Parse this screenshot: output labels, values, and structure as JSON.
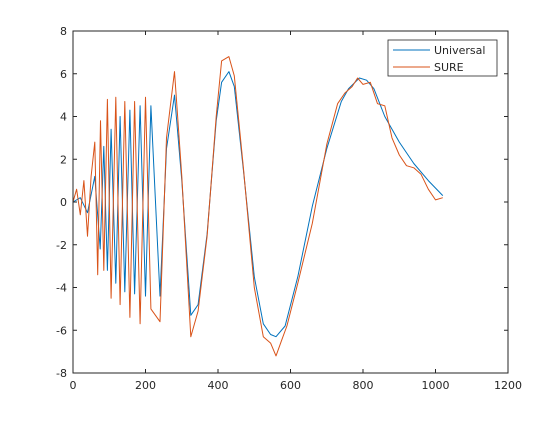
{
  "chart_data": {
    "type": "line",
    "title": "",
    "xlabel": "",
    "ylabel": "",
    "xlim": [
      0,
      1200
    ],
    "ylim": [
      -8,
      8
    ],
    "xticks": [
      0,
      200,
      400,
      600,
      800,
      1000,
      1200
    ],
    "yticks": [
      -8,
      -6,
      -4,
      -2,
      0,
      2,
      4,
      6,
      8
    ],
    "xtick_labels": [
      "0",
      "200",
      "400",
      "600",
      "800",
      "1000",
      "1200"
    ],
    "ytick_labels": [
      "-8",
      "-6",
      "-4",
      "-2",
      "0",
      "2",
      "4",
      "6",
      "8"
    ],
    "grid": false,
    "legend_position": "top-right",
    "series": [
      {
        "name": "Universal",
        "color": "#0072BD",
        "x": [
          0,
          20,
          40,
          60,
          75,
          85,
          95,
          105,
          118,
          130,
          143,
          157,
          170,
          185,
          200,
          215,
          240,
          258,
          280,
          300,
          325,
          345,
          370,
          395,
          410,
          430,
          445,
          470,
          500,
          525,
          545,
          560,
          585,
          620,
          660,
          700,
          740,
          760,
          790,
          810,
          830,
          860,
          900,
          940,
          980,
          1020
        ],
        "y": [
          0,
          0.2,
          -0.5,
          1.2,
          -2.2,
          2.6,
          -3.2,
          3.4,
          -3.8,
          4.0,
          -4.2,
          4.3,
          -4.3,
          4.5,
          -4.4,
          4.5,
          -4.4,
          2.5,
          5.0,
          1.0,
          -5.3,
          -4.8,
          -1.5,
          3.8,
          5.6,
          6.1,
          5.4,
          1.5,
          -3.5,
          -5.7,
          -6.2,
          -6.3,
          -5.8,
          -3.5,
          -0.2,
          2.5,
          4.7,
          5.3,
          5.8,
          5.7,
          5.3,
          4.0,
          2.8,
          1.8,
          1.0,
          0.3
        ]
      },
      {
        "name": "SURE",
        "color": "#D95319",
        "x": [
          0,
          10,
          20,
          30,
          40,
          50,
          60,
          68,
          76,
          85,
          95,
          105,
          118,
          130,
          143,
          157,
          170,
          185,
          200,
          215,
          240,
          258,
          280,
          300,
          325,
          345,
          370,
          395,
          410,
          430,
          445,
          470,
          500,
          525,
          545,
          560,
          575,
          590,
          620,
          660,
          700,
          730,
          750,
          770,
          785,
          800,
          820,
          840,
          860,
          880,
          900,
          920,
          940,
          960,
          980,
          1000,
          1020
        ],
        "y": [
          0,
          0.6,
          -0.6,
          1.0,
          -1.6,
          1.2,
          2.8,
          -3.4,
          3.8,
          -3.2,
          4.8,
          -4.5,
          4.9,
          -4.8,
          4.7,
          -5.4,
          4.7,
          -5.7,
          4.9,
          -5.0,
          -5.6,
          3.0,
          6.1,
          1.2,
          -6.3,
          -5.1,
          -1.6,
          4.0,
          6.6,
          6.8,
          5.9,
          1.6,
          -4.0,
          -6.3,
          -6.6,
          -7.2,
          -6.5,
          -5.8,
          -3.8,
          -1.0,
          2.7,
          4.6,
          5.1,
          5.4,
          5.8,
          5.5,
          5.6,
          4.6,
          4.5,
          3.0,
          2.2,
          1.7,
          1.6,
          1.3,
          0.6,
          0.1,
          0.2
        ]
      }
    ]
  }
}
